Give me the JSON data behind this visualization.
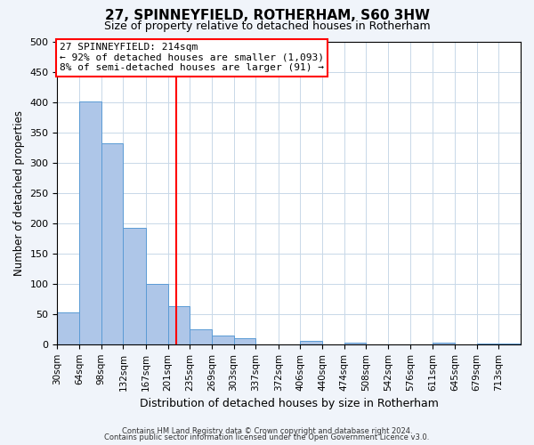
{
  "title": "27, SPINNEYFIELD, ROTHERHAM, S60 3HW",
  "subtitle": "Size of property relative to detached houses in Rotherham",
  "xlabel": "Distribution of detached houses by size in Rotherham",
  "ylabel": "Number of detached properties",
  "bar_labels": [
    "30sqm",
    "64sqm",
    "98sqm",
    "132sqm",
    "167sqm",
    "201sqm",
    "235sqm",
    "269sqm",
    "303sqm",
    "337sqm",
    "372sqm",
    "406sqm",
    "440sqm",
    "474sqm",
    "508sqm",
    "542sqm",
    "576sqm",
    "611sqm",
    "645sqm",
    "679sqm",
    "713sqm"
  ],
  "bar_values": [
    52,
    401,
    332,
    192,
    99,
    63,
    25,
    14,
    10,
    0,
    0,
    5,
    0,
    3,
    0,
    0,
    0,
    2,
    0,
    1,
    1
  ],
  "bar_color": "#aec6e8",
  "bar_edgecolor": "#5b9bd5",
  "vline_x": 214,
  "bin_edges": [
    30,
    64,
    98,
    132,
    167,
    201,
    235,
    269,
    303,
    337,
    372,
    406,
    440,
    474,
    508,
    542,
    576,
    611,
    645,
    679,
    713,
    747
  ],
  "ylim": [
    0,
    500
  ],
  "yticks": [
    0,
    50,
    100,
    150,
    200,
    250,
    300,
    350,
    400,
    450,
    500
  ],
  "annotation_title": "27 SPINNEYFIELD: 214sqm",
  "annotation_line1": "← 92% of detached houses are smaller (1,093)",
  "annotation_line2": "8% of semi-detached houses are larger (91) →",
  "footer1": "Contains HM Land Registry data © Crown copyright and database right 2024.",
  "footer2": "Contains public sector information licensed under the Open Government Licence v3.0.",
  "bg_color": "#f0f4fa",
  "plot_bg_color": "#ffffff",
  "grid_color": "#c8d8e8"
}
